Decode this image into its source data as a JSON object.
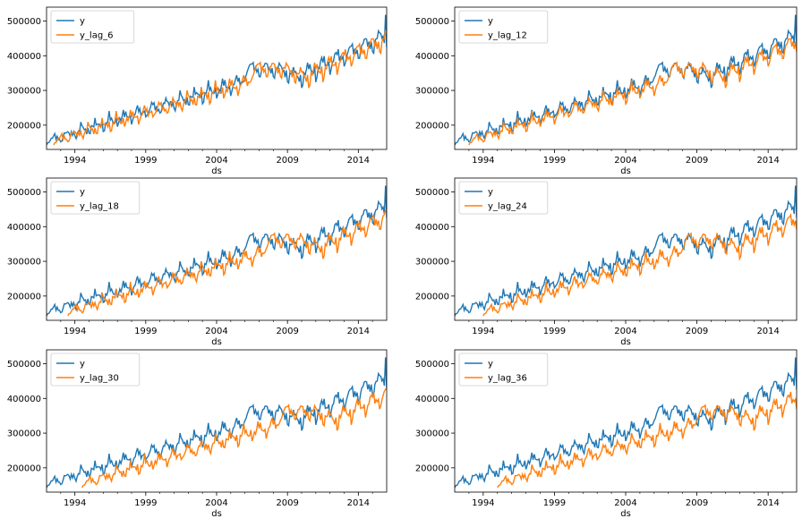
{
  "figure": {
    "background": "#ffffff"
  },
  "colors": {
    "y": "#1f77b4",
    "lag": "#ff7f0e"
  },
  "chart_data": [
    {
      "type": "line",
      "xlabel": "ds",
      "ylabel": "",
      "x_ticks": [
        "1994",
        "1999",
        "2004",
        "2009",
        "2014"
      ],
      "y_ticks": [
        "200000",
        "300000",
        "400000",
        "500000"
      ],
      "xlim": [
        1992.0,
        2016.0
      ],
      "ylim": [
        130000,
        540000
      ],
      "legend": "upper left",
      "grid": false,
      "series": [
        {
          "name": "y",
          "lag_months": 0
        },
        {
          "name": "y_lag_6",
          "lag_months": 6
        }
      ]
    },
    {
      "type": "line",
      "xlabel": "ds",
      "ylabel": "",
      "x_ticks": [
        "1994",
        "1999",
        "2004",
        "2009",
        "2014"
      ],
      "y_ticks": [
        "200000",
        "300000",
        "400000",
        "500000"
      ],
      "xlim": [
        1992.0,
        2016.0
      ],
      "ylim": [
        130000,
        540000
      ],
      "legend": "upper left",
      "grid": false,
      "series": [
        {
          "name": "y",
          "lag_months": 0
        },
        {
          "name": "y_lag_12",
          "lag_months": 12
        }
      ]
    },
    {
      "type": "line",
      "xlabel": "ds",
      "ylabel": "",
      "x_ticks": [
        "1994",
        "1999",
        "2004",
        "2009",
        "2014"
      ],
      "y_ticks": [
        "200000",
        "300000",
        "400000",
        "500000"
      ],
      "xlim": [
        1992.0,
        2016.0
      ],
      "ylim": [
        130000,
        540000
      ],
      "legend": "upper left",
      "grid": false,
      "series": [
        {
          "name": "y",
          "lag_months": 0
        },
        {
          "name": "y_lag_18",
          "lag_months": 18
        }
      ]
    },
    {
      "type": "line",
      "xlabel": "ds",
      "ylabel": "",
      "x_ticks": [
        "1994",
        "1999",
        "2004",
        "2009",
        "2014"
      ],
      "y_ticks": [
        "200000",
        "300000",
        "400000",
        "500000"
      ],
      "xlim": [
        1992.0,
        2016.0
      ],
      "ylim": [
        130000,
        540000
      ],
      "legend": "upper left",
      "grid": false,
      "series": [
        {
          "name": "y",
          "lag_months": 0
        },
        {
          "name": "y_lag_24",
          "lag_months": 24
        }
      ]
    },
    {
      "type": "line",
      "xlabel": "ds",
      "ylabel": "",
      "x_ticks": [
        "1994",
        "1999",
        "2004",
        "2009",
        "2014"
      ],
      "y_ticks": [
        "200000",
        "300000",
        "400000",
        "500000"
      ],
      "xlim": [
        1992.0,
        2016.0
      ],
      "ylim": [
        130000,
        540000
      ],
      "legend": "upper left",
      "grid": false,
      "series": [
        {
          "name": "y",
          "lag_months": 0
        },
        {
          "name": "y_lag_30",
          "lag_months": 30
        }
      ]
    },
    {
      "type": "line",
      "xlabel": "ds",
      "ylabel": "",
      "x_ticks": [
        "1994",
        "1999",
        "2004",
        "2009",
        "2014"
      ],
      "y_ticks": [
        "200000",
        "300000",
        "400000",
        "500000"
      ],
      "xlim": [
        1992.0,
        2016.0
      ],
      "ylim": [
        130000,
        540000
      ],
      "legend": "upper left",
      "grid": false,
      "series": [
        {
          "name": "y",
          "lag_months": 0
        },
        {
          "name": "y_lag_36",
          "lag_months": 36
        }
      ]
    }
  ]
}
